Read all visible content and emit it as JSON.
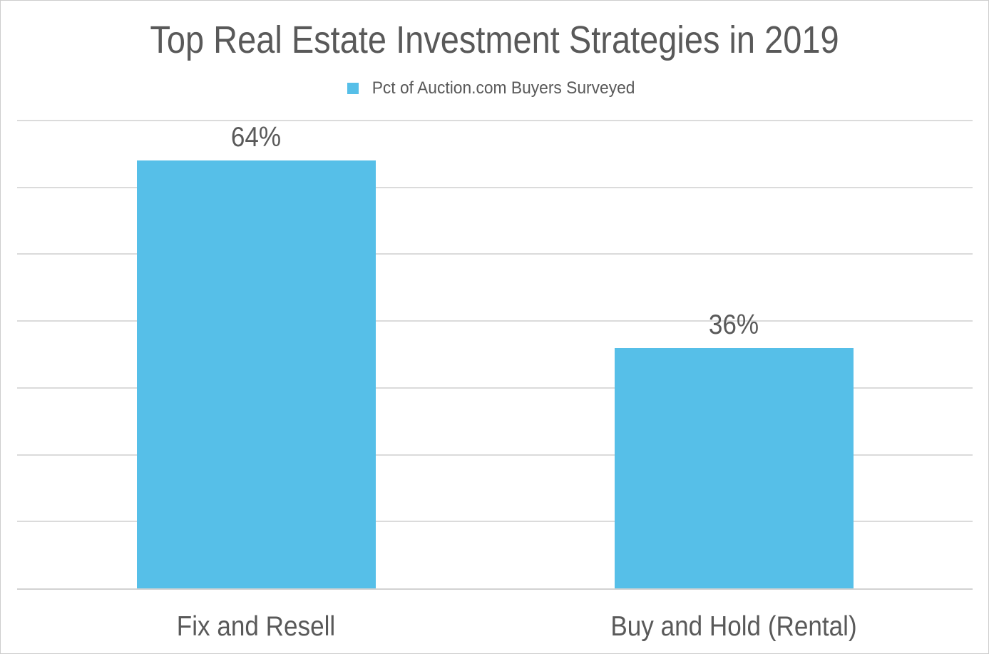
{
  "window": {
    "background": "#FFFFFF",
    "border_color": "#CDCDCD"
  },
  "chart_data": {
    "type": "bar",
    "title": "Top Real Estate Investment Strategies in 2019",
    "legend": {
      "position": "top",
      "items": [
        {
          "label": "Pct of Auction.com Buyers Surveyed",
          "marker": "square-icon",
          "color": "#56BFE8"
        }
      ]
    },
    "categories": [
      "Fix and Resell",
      "Buy and Hold (Rental)"
    ],
    "series": [
      {
        "name": "Pct of Auction.com Buyers Surveyed",
        "values": [
          64,
          36
        ],
        "color": "#56BFE8"
      }
    ],
    "data_labels": [
      "64%",
      "36%"
    ],
    "xlabel": "",
    "ylabel": "",
    "ylim": [
      0,
      70
    ],
    "y_gridline_step": 10,
    "grid": true,
    "y_tick_labels_visible": false,
    "text_color": "#595959",
    "gridline_color": "#DBDBDB",
    "axis_line_color": "#D2D2D2"
  }
}
